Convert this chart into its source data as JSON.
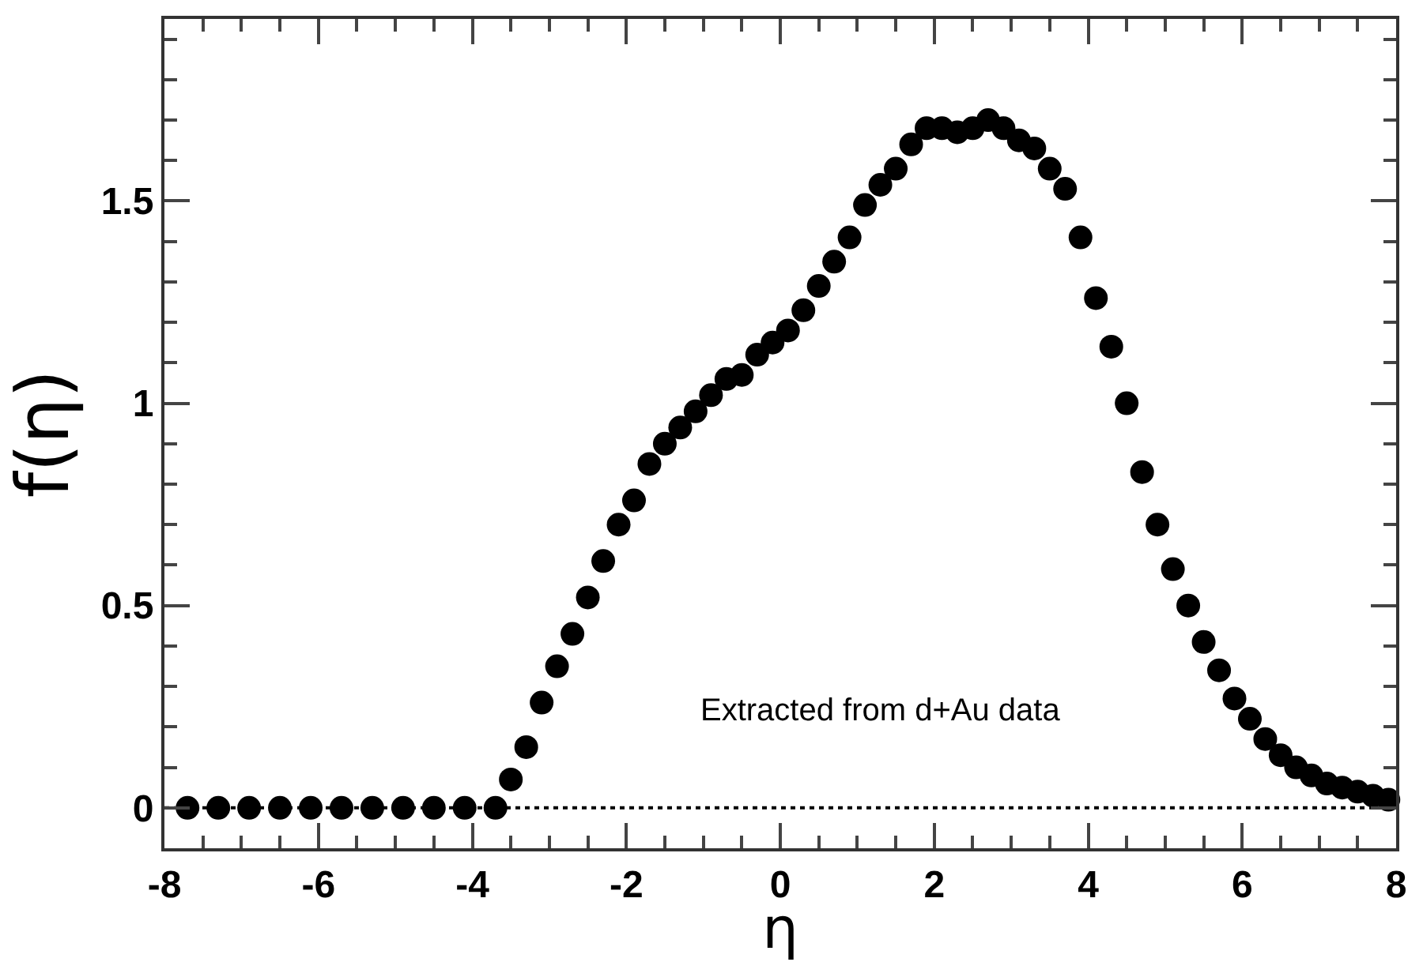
{
  "chart_data": {
    "type": "scatter",
    "xlabel": "η",
    "ylabel": "f(η)",
    "xlim": [
      -8,
      8
    ],
    "ylim": [
      -0.1,
      1.95
    ],
    "xticks": [
      -8,
      -6,
      -4,
      -2,
      0,
      2,
      4,
      6,
      8
    ],
    "yticks": [
      0,
      0.5,
      1,
      1.5
    ],
    "marker": "circle",
    "series": [
      {
        "color": "#000000",
        "x": [
          -7.7,
          -7.3,
          -6.9,
          -6.5,
          -6.1,
          -5.7,
          -5.3,
          -4.9,
          -4.5,
          -4.1,
          -3.7,
          -3.5,
          -3.3,
          -3.1,
          -2.9,
          -2.7,
          -2.5,
          -2.3,
          -2.1,
          -1.9,
          -1.7,
          -1.5,
          -1.3,
          -1.1,
          -0.9,
          -0.7,
          -0.5,
          -0.3,
          -0.1,
          0.1,
          0.3,
          0.5,
          0.7,
          0.9,
          1.1,
          1.3,
          1.5,
          1.7,
          1.9,
          2.1,
          2.3,
          2.5,
          2.7,
          2.9,
          3.1,
          3.3,
          3.5,
          3.7,
          3.9,
          4.1,
          4.3,
          4.5,
          4.7,
          4.9,
          5.1,
          5.3,
          5.5,
          5.7,
          5.9,
          6.1,
          6.3,
          6.5,
          6.7,
          6.9,
          7.1,
          7.3,
          7.5,
          7.7,
          7.9
        ],
        "values": [
          0,
          0,
          0,
          0,
          0,
          0,
          0,
          0,
          0,
          0,
          0,
          0.07,
          0.15,
          0.26,
          0.35,
          0.43,
          0.52,
          0.61,
          0.7,
          0.76,
          0.85,
          0.9,
          0.94,
          0.98,
          1.02,
          1.06,
          1.07,
          1.12,
          1.15,
          1.18,
          1.23,
          1.29,
          1.35,
          1.41,
          1.49,
          1.54,
          1.58,
          1.64,
          1.68,
          1.68,
          1.67,
          1.68,
          1.7,
          1.68,
          1.65,
          1.63,
          1.58,
          1.53,
          1.41,
          1.26,
          1.14,
          1.0,
          0.83,
          0.7,
          0.59,
          0.5,
          0.41,
          0.34,
          0.27,
          0.22,
          0.17,
          0.13,
          0.1,
          0.08,
          0.06,
          0.05,
          0.04,
          0.03,
          0.02
        ]
      }
    ],
    "ref_lines": [
      {
        "axis": "y",
        "value": 0,
        "color": "#000000",
        "line_style": "dotted"
      }
    ],
    "annotations": [
      "Extracted from d+Au data"
    ]
  }
}
